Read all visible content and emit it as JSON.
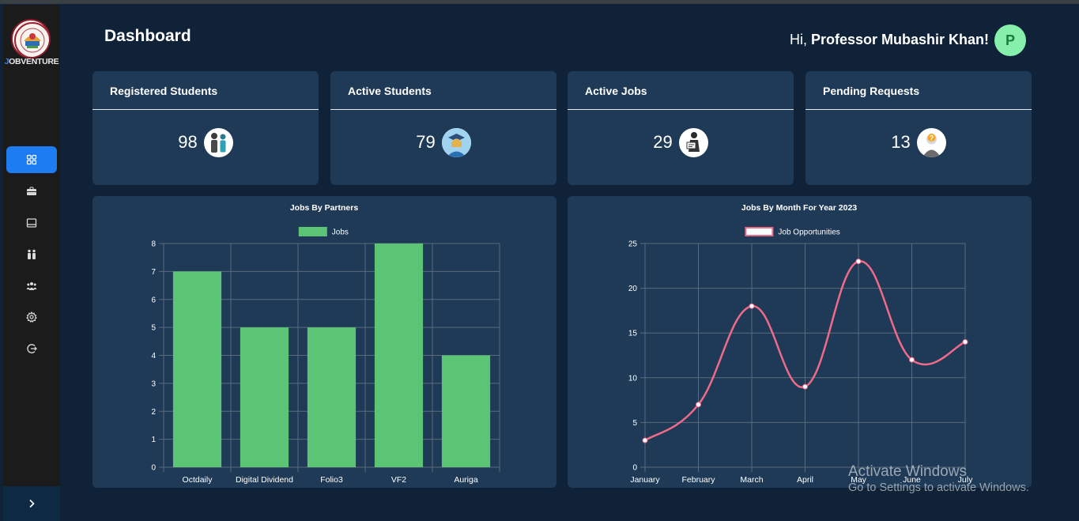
{
  "app": {
    "name_prefix": "J",
    "name_rest": "OBVENTURE"
  },
  "header": {
    "title": "Dashboard",
    "greeting_prefix": "Hi, ",
    "user_name": "Professor Mubashir Khan!",
    "avatar_initial": "P"
  },
  "sidebar": {
    "items": [
      {
        "icon": "dashboard-grid-icon",
        "active": true
      },
      {
        "icon": "briefcase-icon",
        "active": false
      },
      {
        "icon": "window-icon",
        "active": false
      },
      {
        "icon": "people-pair-icon",
        "active": false
      },
      {
        "icon": "group-icon",
        "active": false
      },
      {
        "icon": "gear-icon",
        "active": false
      },
      {
        "icon": "logout-icon",
        "active": false
      }
    ],
    "expand_icon": "chevron-right-icon"
  },
  "stats": [
    {
      "label": "Registered Students",
      "value": "98",
      "icon": "students-icon"
    },
    {
      "label": "Active Students",
      "value": "79",
      "icon": "graduate-icon"
    },
    {
      "label": "Active Jobs",
      "value": "29",
      "icon": "job-seeker-icon"
    },
    {
      "label": "Pending Requests",
      "value": "13",
      "icon": "question-person-icon"
    }
  ],
  "chart_data": [
    {
      "type": "bar",
      "title": "Jobs By Partners",
      "categories": [
        "Octdaily",
        "Digital Dividend",
        "Folio3",
        "VF2",
        "Auriga"
      ],
      "series": [
        {
          "name": "Jobs",
          "values": [
            7,
            5,
            5,
            8,
            4
          ]
        }
      ],
      "ylim": [
        0,
        8
      ],
      "yticks": [
        0,
        1,
        2,
        3,
        4,
        5,
        6,
        7,
        8
      ],
      "grid": true,
      "legend": "top-center",
      "color": "#5bc475"
    },
    {
      "type": "line",
      "title": "Jobs By Month For Year 2023",
      "categories": [
        "January",
        "February",
        "March",
        "April",
        "May",
        "June",
        "July"
      ],
      "series": [
        {
          "name": "Job Opportunities",
          "values": [
            3,
            7,
            18,
            9,
            23,
            12,
            14
          ]
        }
      ],
      "ylim": [
        0,
        25
      ],
      "yticks": [
        0,
        5,
        10,
        15,
        20,
        25
      ],
      "grid": true,
      "legend": "top-center",
      "color": "#f06a8a"
    }
  ],
  "watermark": {
    "line1": "Activate Windows",
    "line2": "Go to Settings to activate Windows."
  }
}
